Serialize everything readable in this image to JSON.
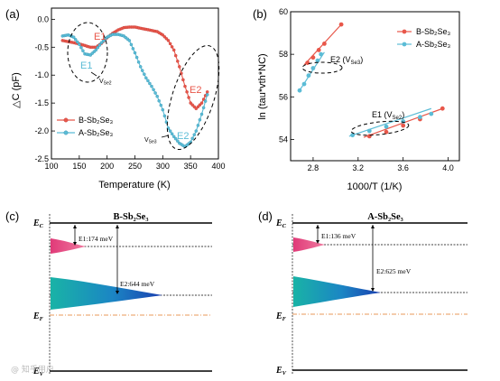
{
  "colors": {
    "B": "#e8574a",
    "A": "#5bbcd6",
    "pinkFill": "#e0407a",
    "tealFill": "#1fb0b8",
    "blueFill": "#1a4fb5",
    "fermi": "#e89a5a"
  },
  "panel_a": {
    "label": "(a)",
    "chart_data": {
      "type": "line",
      "xlabel": "Temperature (K)",
      "ylabel": "△C (pF)",
      "xlim": [
        100,
        400
      ],
      "ylim": [
        -2.5,
        0.2
      ],
      "xticks": [
        "100",
        "150",
        "200",
        "250",
        "300",
        "350",
        "400"
      ],
      "yticks": [
        "0.0",
        "-0.5",
        "-1.0",
        "-1.5",
        "-2.0",
        "-2.5"
      ],
      "series": [
        {
          "name": "B-Sb₂Se₃",
          "color": "#e8574a",
          "x": [
            120,
            130,
            140,
            150,
            160,
            170,
            180,
            190,
            200,
            210,
            220,
            230,
            240,
            250,
            260,
            270,
            280,
            290,
            300,
            310,
            320,
            330,
            340,
            350,
            360,
            370,
            380
          ],
          "y": [
            -0.38,
            -0.4,
            -0.42,
            -0.44,
            -0.47,
            -0.5,
            -0.5,
            -0.43,
            -0.33,
            -0.25,
            -0.19,
            -0.15,
            -0.14,
            -0.14,
            -0.16,
            -0.18,
            -0.2,
            -0.22,
            -0.28,
            -0.38,
            -0.55,
            -0.85,
            -1.2,
            -1.5,
            -1.6,
            -1.5,
            -1.3
          ]
        },
        {
          "name": "A-Sb₂Se₃",
          "color": "#5bbcd6",
          "x": [
            120,
            130,
            140,
            150,
            160,
            170,
            180,
            190,
            200,
            210,
            220,
            230,
            240,
            250,
            260,
            270,
            280,
            290,
            300,
            310,
            320,
            330,
            340,
            350,
            360,
            370,
            380
          ],
          "y": [
            -0.3,
            -0.28,
            -0.32,
            -0.45,
            -0.62,
            -0.64,
            -0.55,
            -0.42,
            -0.32,
            -0.27,
            -0.27,
            -0.3,
            -0.38,
            -0.6,
            -0.85,
            -1.05,
            -1.2,
            -1.38,
            -1.62,
            -1.95,
            -2.1,
            -2.22,
            -2.28,
            -2.2,
            -2.0,
            -1.7,
            -1.35
          ]
        }
      ],
      "annotations": {
        "e1": "E1",
        "e2": "E2",
        "vse2_pre": "V",
        "vse2_sub": "Se2",
        "vse3_pre": "V",
        "vse3_sub": "Se3"
      },
      "legend": "bottom-left"
    }
  },
  "panel_b": {
    "label": "(b)",
    "chart_data": {
      "type": "scatter",
      "xlabel": "1000/T (1/K)",
      "ylabel": "ln (tau*vth*NC)",
      "xlim": [
        2.6,
        4.1
      ],
      "ylim": [
        53,
        60
      ],
      "xticks": [
        "2.8",
        "3.2",
        "3.6",
        "4.0"
      ],
      "xtick_values": [
        2.8,
        3.2,
        3.6,
        4.0
      ],
      "yticks": [
        "54",
        "56",
        "58",
        "60"
      ],
      "ytick_values": [
        54,
        56,
        58,
        60
      ],
      "series": [
        {
          "name": "B-Sb₂Se₃",
          "color": "#e8574a",
          "group": "E2",
          "points": [
            [
              2.75,
              57.6
            ],
            [
              2.8,
              57.85
            ],
            [
              2.85,
              58.2
            ],
            [
              2.9,
              58.5
            ],
            [
              3.05,
              59.4
            ]
          ],
          "fit": [
            [
              2.72,
              57.5
            ],
            [
              3.05,
              59.4
            ]
          ]
        },
        {
          "name": "A-Sb₂Se₃",
          "color": "#5bbcd6",
          "group": "E2",
          "points": [
            [
              2.68,
              56.3
            ],
            [
              2.72,
              56.6
            ],
            [
              2.76,
              57.0
            ],
            [
              2.8,
              57.35
            ],
            [
              2.84,
              57.7
            ],
            [
              2.87,
              58.0
            ]
          ],
          "fit": [
            [
              2.68,
              56.3
            ],
            [
              2.9,
              58.1
            ]
          ]
        },
        {
          "name": "B-Sb₂Se₃",
          "color": "#e8574a",
          "group": "E1",
          "points": [
            [
              3.3,
              54.15
            ],
            [
              3.45,
              54.35
            ],
            [
              3.6,
              54.65
            ],
            [
              3.75,
              54.95
            ],
            [
              3.95,
              55.45
            ]
          ],
          "fit": [
            [
              3.25,
              54.1
            ],
            [
              3.95,
              55.45
            ]
          ]
        },
        {
          "name": "A-Sb₂Se₃",
          "color": "#5bbcd6",
          "group": "E1",
          "points": [
            [
              3.15,
              54.2
            ],
            [
              3.3,
              54.4
            ],
            [
              3.45,
              54.6
            ],
            [
              3.6,
              54.85
            ],
            [
              3.75,
              55.05
            ],
            [
              3.85,
              55.2
            ]
          ],
          "fit": [
            [
              3.12,
              54.15
            ],
            [
              3.85,
              55.45
            ]
          ]
        }
      ],
      "annotations": {
        "e2_pre": "E2 (V",
        "e2_sub": "Se3",
        "e2_post": ")",
        "e1_pre": "E1 (V",
        "e1_sub": "Se2",
        "e1_post": ")"
      },
      "legend": "top-right",
      "legend_entries": [
        "B-Sb₂Se₃",
        "A-Sb₂Se₃"
      ]
    }
  },
  "panel_c": {
    "label": "(c)",
    "title": "B-Sb₂Se₃",
    "ec": "E",
    "ec_sub": "C",
    "ef": "E",
    "ef_sub": "F",
    "ev": "E",
    "ev_sub": "V",
    "e1_label": "E1:174 meV",
    "e2_label": "E2:644 meV",
    "chart_data": {
      "type": "diagram",
      "e1_meV": 174,
      "e2_meV": 644
    }
  },
  "panel_d": {
    "label": "(d)",
    "title": "A-Sb₂Se₃",
    "ec": "E",
    "ec_sub": "C",
    "ef": "E",
    "ef_sub": "F",
    "ev": "E",
    "ev_sub": "V",
    "e1_label": "E1:136 meV",
    "e2_label": "E2:625 meV",
    "chart_data": {
      "type": "diagram",
      "e1_meV": 136,
      "e2_meV": 625
    }
  },
  "watermark": "@ 知乎用户"
}
